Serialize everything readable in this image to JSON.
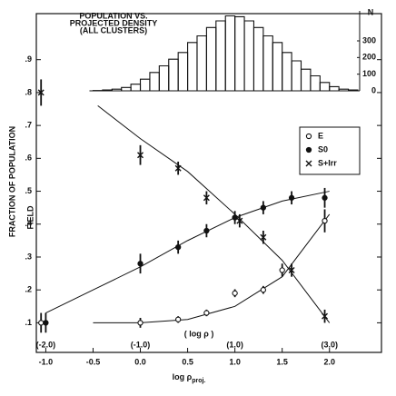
{
  "chart_data": {
    "type": "scatter",
    "y_label": "FRACTION OF POPULATION",
    "x_label": "log ρ",
    "x_label_sub": "proj.",
    "xlim": [
      -1.1,
      2.55
    ],
    "ylim": [
      0.01,
      1.04
    ],
    "xticks": [
      {
        "value": -1,
        "label": "-1.0"
      },
      {
        "value": -0.5,
        "label": "-0.5"
      },
      {
        "value": 0,
        "label": "0.0"
      },
      {
        "value": 0.5,
        "label": "0.5"
      },
      {
        "value": 1,
        "label": "1.0"
      },
      {
        "value": 1.5,
        "label": "1.5"
      },
      {
        "value": 2,
        "label": "2.0"
      }
    ],
    "yticks": [
      {
        "value": 0.1,
        "label": ".1"
      },
      {
        "value": 0.2,
        "label": ".2"
      },
      {
        "value": 0.3,
        "label": ".3"
      },
      {
        "value": 0.4,
        "label": ".4"
      },
      {
        "value": 0.5,
        "label": ".5"
      },
      {
        "value": 0.6,
        "label": ".6"
      },
      {
        "value": 0.7,
        "label": ".7"
      },
      {
        "value": 0.8,
        "label": ".8"
      },
      {
        "value": 0.9,
        "label": ".9"
      }
    ],
    "secondary_x_labels": [
      {
        "value": -1,
        "label": "(-2.0)"
      },
      {
        "value": 0,
        "label": "(-1.0)"
      },
      {
        "value": 1,
        "label": "(1.0)"
      },
      {
        "value": 2,
        "label": "(3.0)"
      }
    ],
    "secondary_x_title": "( log ρ )",
    "field_label": "FIELD",
    "legend_position": "right",
    "series": [
      {
        "name": "E",
        "marker": "open-circle",
        "color": "#111",
        "x": [
          -1.05,
          0.0,
          0.4,
          0.7,
          1.0,
          1.3,
          1.5,
          1.95
        ],
        "values": [
          0.1,
          0.1,
          0.11,
          0.13,
          0.19,
          0.2,
          0.26,
          0.41
        ],
        "errors": [
          0.03,
          0.015,
          0.01,
          0.01,
          0.012,
          0.012,
          0.02,
          0.035
        ],
        "fit": {
          "x": [
            -0.5,
            0.0,
            0.5,
            1.0,
            1.5,
            2.0
          ],
          "values": [
            0.1,
            0.1,
            0.11,
            0.15,
            0.24,
            0.43
          ]
        }
      },
      {
        "name": "S0",
        "marker": "filled-circle",
        "color": "#111",
        "x": [
          -1.0,
          0.0,
          0.4,
          0.7,
          1.0,
          1.3,
          1.6,
          1.95
        ],
        "values": [
          0.1,
          0.28,
          0.33,
          0.38,
          0.42,
          0.45,
          0.48,
          0.48
        ],
        "errors": [
          0.03,
          0.03,
          0.02,
          0.02,
          0.02,
          0.02,
          0.02,
          0.03
        ],
        "fit": {
          "x": [
            -1.0,
            -0.5,
            0.0,
            0.5,
            1.0,
            1.5,
            2.0
          ],
          "values": [
            0.13,
            0.2,
            0.27,
            0.35,
            0.42,
            0.47,
            0.5
          ]
        }
      },
      {
        "name": "S+Irr",
        "marker": "cross",
        "color": "#111",
        "x": [
          -1.05,
          0.0,
          0.4,
          0.7,
          1.05,
          1.3,
          1.6,
          1.95
        ],
        "values": [
          0.8,
          0.61,
          0.57,
          0.48,
          0.41,
          0.36,
          0.26,
          0.12
        ],
        "errors": [
          0.04,
          0.03,
          0.02,
          0.02,
          0.02,
          0.02,
          0.02,
          0.02
        ],
        "fit": {
          "x": [
            -0.45,
            0.0,
            0.5,
            1.0,
            1.5,
            2.0
          ],
          "values": [
            0.76,
            0.66,
            0.56,
            0.43,
            0.29,
            0.1
          ]
        }
      }
    ],
    "inset": {
      "type": "histogram",
      "title": [
        "POPULATION VS.",
        "PROJECTED DENSITY",
        "(ALL CLUSTERS)"
      ],
      "y_label": "N",
      "ylim": [
        0,
        480
      ],
      "yticks": [
        0,
        100,
        200,
        300
      ],
      "bins": [
        -0.5,
        -0.4,
        -0.3,
        -0.2,
        -0.1,
        0.0,
        0.1,
        0.2,
        0.3,
        0.4,
        0.5,
        0.6,
        0.7,
        0.8,
        0.9,
        1.0,
        1.1,
        1.2,
        1.3,
        1.4,
        1.5,
        1.6,
        1.7,
        1.8,
        1.9,
        2.0,
        2.1,
        2.2,
        2.3
      ],
      "counts": [
        2,
        5,
        10,
        20,
        40,
        70,
        110,
        150,
        190,
        230,
        290,
        330,
        380,
        420,
        450,
        445,
        420,
        380,
        330,
        290,
        230,
        180,
        130,
        90,
        50,
        25,
        10,
        5
      ]
    }
  }
}
